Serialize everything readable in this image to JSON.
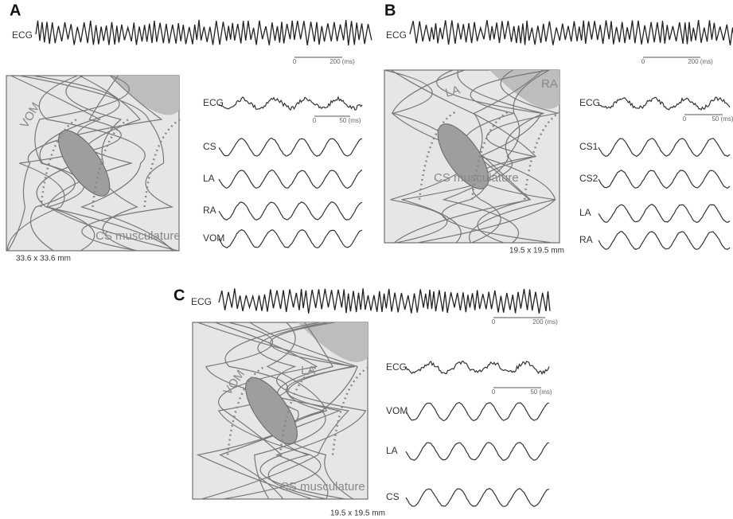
{
  "panels": [
    {
      "label": "A",
      "ecg": {
        "label": "ECG",
        "scale_start": "0",
        "scale_end": "200 (ms)"
      },
      "map": {
        "labels": [
          "VOM",
          "CS musculature"
        ],
        "size": "33.6 x 33.6 mm"
      },
      "traces": {
        "labels": [
          "ECG",
          "CS",
          "LA",
          "RA",
          "VOM"
        ],
        "scale_start": "0",
        "scale_end": "50 (ms)"
      }
    },
    {
      "label": "B",
      "ecg": {
        "label": "ECG",
        "scale_start": "0",
        "scale_end": "200 (ms)"
      },
      "map": {
        "labels": [
          "LA",
          "RA",
          "CS musculature"
        ],
        "size": "19.5 x 19.5 mm"
      },
      "traces": {
        "labels": [
          "ECG",
          "CS1",
          "CS2",
          "LA",
          "RA"
        ],
        "scale_start": "0",
        "scale_end": "50 (ms)"
      }
    },
    {
      "label": "C",
      "ecg": {
        "label": "ECG",
        "scale_start": "0",
        "scale_end": "200 (ms)"
      },
      "map": {
        "labels": [
          "VOM",
          "LA",
          "CS musculature"
        ],
        "size": "19.5 x 19.5 mm"
      },
      "traces": {
        "labels": [
          "ECG",
          "VOM",
          "LA",
          "CS"
        ],
        "scale_start": "0",
        "scale_end": "50 (ms)"
      }
    }
  ]
}
